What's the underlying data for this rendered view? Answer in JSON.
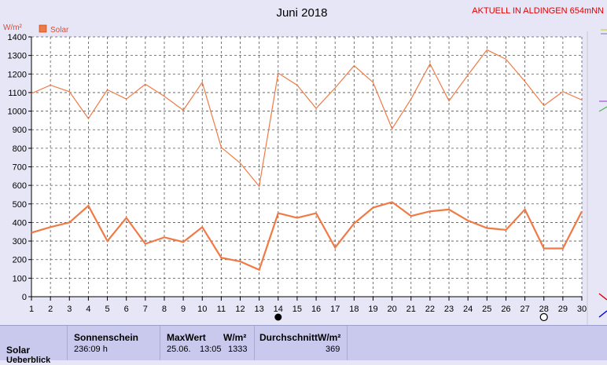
{
  "header": {
    "title": "Juni 2018",
    "corner_label": "AKTUELL IN ALDINGEN 654mNN",
    "unit": "W/m²"
  },
  "colors": {
    "series": "#f07a45",
    "legend_box": "#f07a45",
    "background": "#e6e6f7",
    "stats_bg": "#c9c9ee"
  },
  "chart_data": {
    "type": "line",
    "title": "Juni 2018",
    "ylabel": "W/m²",
    "ylim": [
      0,
      1400
    ],
    "yticks": [
      0,
      100,
      200,
      300,
      400,
      500,
      600,
      700,
      800,
      900,
      1000,
      1100,
      1200,
      1300,
      1400
    ],
    "x": [
      1,
      2,
      3,
      4,
      5,
      6,
      7,
      8,
      9,
      10,
      11,
      12,
      13,
      14,
      15,
      16,
      17,
      18,
      19,
      20,
      21,
      22,
      23,
      24,
      25,
      26,
      27,
      28,
      29,
      30
    ],
    "grid": true,
    "legend": "top-left",
    "series": [
      {
        "name": "Solar",
        "role": "max",
        "values": [
          1095,
          1140,
          1105,
          960,
          1115,
          1065,
          1145,
          1080,
          1005,
          1155,
          805,
          720,
          595,
          1205,
          1140,
          1015,
          1125,
          1245,
          1155,
          905,
          1065,
          1255,
          1055,
          1195,
          1330,
          1280,
          1160,
          1030,
          1105,
          1060
        ]
      },
      {
        "role": "mean",
        "values": [
          345,
          375,
          400,
          490,
          300,
          425,
          285,
          320,
          295,
          375,
          210,
          190,
          145,
          450,
          425,
          450,
          265,
          395,
          480,
          510,
          435,
          460,
          470,
          410,
          370,
          360,
          470,
          260,
          260,
          460
        ]
      }
    ],
    "markers": [
      {
        "day": 14,
        "symbol": "filled-circle"
      },
      {
        "day": 28,
        "symbol": "open-circle"
      }
    ]
  },
  "stats": {
    "row_label": "Solar",
    "row_label_2": "Ueberblick",
    "sonnenschein_label": "Sonnenschein",
    "sonnenschein_value": "236:09 h",
    "maxwert_label": "MaxWert",
    "maxwert_unit": "W/m²",
    "maxwert_date": "25.06.",
    "maxwert_time": "13:05",
    "maxwert_value": "1333",
    "durchschnitt_label": "DurchschnittW/m²",
    "durchschnitt_value": "369"
  }
}
